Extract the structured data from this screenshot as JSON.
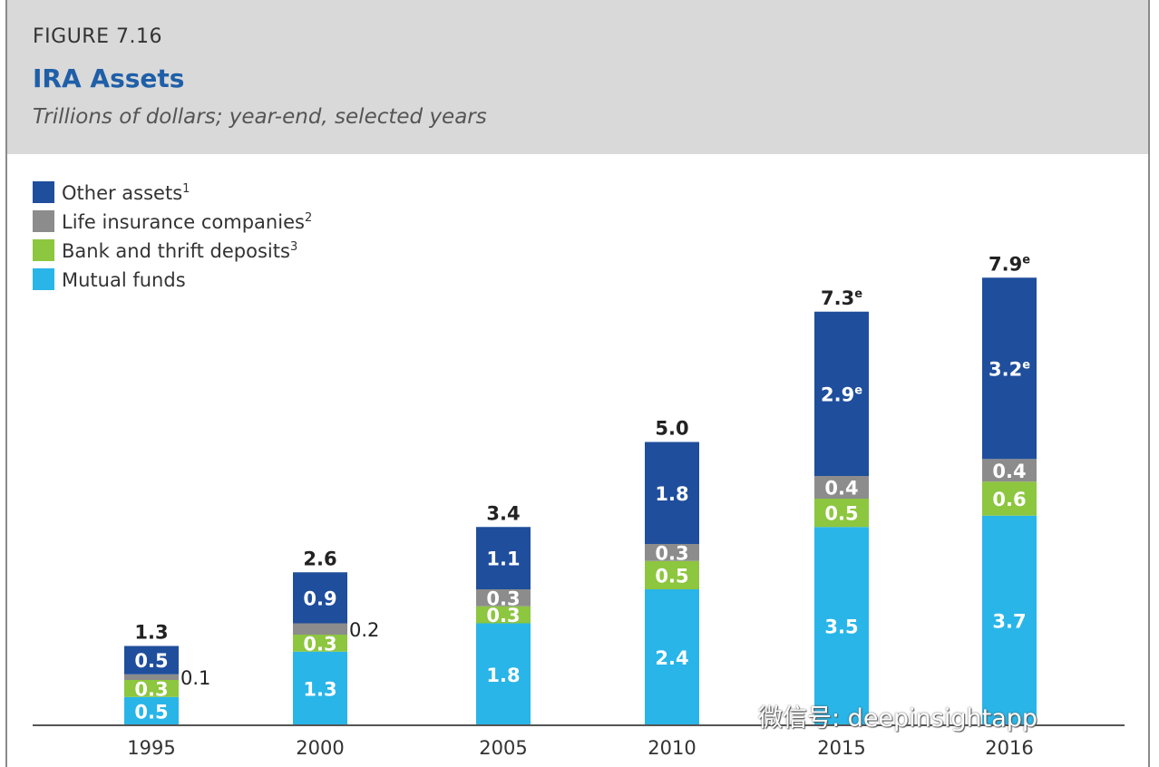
{
  "figure": {
    "label": "FIGURE 7.16",
    "title": "IRA Assets",
    "subtitle": "Trillions of dollars; year-end, selected years"
  },
  "watermark": "微信号: deepinsightapp",
  "colors": {
    "other_assets": "#1f4e9c",
    "life_insurance": "#8c8c8c",
    "bank_thrift": "#8dc63f",
    "mutual_funds": "#29b5e8"
  },
  "chart_data": {
    "type": "bar",
    "stacked": true,
    "categories": [
      "1995",
      "2000",
      "2005",
      "2010",
      "2015",
      "2016"
    ],
    "series": [
      {
        "name": "Mutual funds",
        "key": "mutual_funds",
        "values": [
          0.5,
          1.3,
          1.8,
          2.4,
          3.5,
          3.7
        ],
        "labels": [
          "0.5",
          "1.3",
          "1.8",
          "2.4",
          "3.5",
          "3.7"
        ]
      },
      {
        "name": "Bank and thrift deposits",
        "sup": "3",
        "key": "bank_thrift",
        "values": [
          0.3,
          0.3,
          0.3,
          0.5,
          0.5,
          0.6
        ],
        "labels": [
          "0.3",
          "0.3",
          "0.3",
          "0.5",
          "0.5",
          "0.6"
        ]
      },
      {
        "name": "Life insurance companies",
        "sup": "2",
        "key": "life_insurance",
        "values": [
          0.1,
          0.2,
          0.3,
          0.3,
          0.4,
          0.4
        ],
        "labels": [
          "0.1",
          "0.2",
          "0.3",
          "0.3",
          "0.4",
          "0.4"
        ]
      },
      {
        "name": "Other assets",
        "sup": "1",
        "key": "other_assets",
        "values": [
          0.5,
          0.9,
          1.1,
          1.8,
          2.9,
          3.2
        ],
        "labels": [
          "0.5",
          "0.9",
          "1.1",
          "1.8",
          "2.9e",
          "3.2e"
        ]
      }
    ],
    "totals": [
      1.3,
      2.6,
      3.4,
      5.0,
      7.3,
      7.9
    ],
    "total_labels": [
      "1.3",
      "2.6",
      "3.4",
      "5.0",
      "7.3e",
      "7.9e"
    ],
    "legend_order": [
      "other_assets",
      "life_insurance",
      "bank_thrift",
      "mutual_funds"
    ],
    "legend_position": "top-left",
    "ylim": [
      0,
      8.5
    ],
    "grid": false
  }
}
